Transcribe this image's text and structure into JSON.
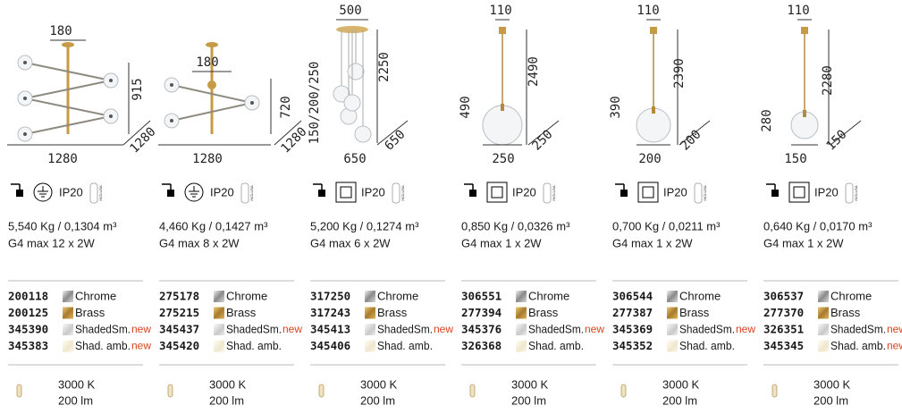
{
  "products": [
    {
      "dimensions": [
        "180",
        "915",
        "1280",
        "1280"
      ],
      "ip": "IP20",
      "included": "INCLUSA",
      "weight": "5,540 Kg / 0,1304 m³",
      "lamp": "G4 max 12 x 2W",
      "variants": [
        {
          "code": "200118",
          "finish": "Chrome"
        },
        {
          "code": "200125",
          "finish": "Brass"
        },
        {
          "code": "345390",
          "finish": "ShadedSm.",
          "tag": "new"
        },
        {
          "code": "345383",
          "finish": "Shad. amb.",
          "tag": "new"
        }
      ],
      "color_temperature": "3000 K",
      "flux": "200 lm"
    },
    {
      "dimensions": [
        "180",
        "720",
        "1280",
        "1280"
      ],
      "ip": "IP20",
      "included": "INCLUSA",
      "weight": "4,460 Kg / 0,1427 m³",
      "lamp": "G4 max 8 x 2W",
      "variants": [
        {
          "code": "275178",
          "finish": "Chrome"
        },
        {
          "code": "275215",
          "finish": "Brass"
        },
        {
          "code": "345437",
          "finish": "ShadedSm.",
          "tag": "new"
        },
        {
          "code": "345420",
          "finish": "Shad. amb."
        }
      ],
      "color_temperature": "3000 K",
      "flux": "200 lm"
    },
    {
      "dimensions": [
        "500",
        "150/200/250",
        "2250",
        "650",
        "650"
      ],
      "ip": "IP20",
      "included": "INCLUSA",
      "weight": "5,200 Kg / 0,1274 m³",
      "lamp": "G4 max 6 x 2W",
      "variants": [
        {
          "code": "317250",
          "finish": "Chrome"
        },
        {
          "code": "317243",
          "finish": "Brass"
        },
        {
          "code": "345413",
          "finish": "ShadedSm.",
          "tag": "new"
        },
        {
          "code": "345406",
          "finish": "Shad. amb."
        }
      ],
      "color_temperature": "3000 K",
      "flux": "200 lm"
    },
    {
      "dimensions": [
        "110",
        "490",
        "2490",
        "250",
        "250"
      ],
      "ip": "IP20",
      "included": "INCLUSA",
      "weight": "0,850 Kg / 0,0326 m³",
      "lamp": "G4 max 1 x 2W",
      "variants": [
        {
          "code": "306551",
          "finish": "Chrome"
        },
        {
          "code": "277394",
          "finish": "Brass"
        },
        {
          "code": "345376",
          "finish": "ShadedSm.",
          "tag": "new"
        },
        {
          "code": "326368",
          "finish": "Shad. amb."
        }
      ],
      "color_temperature": "3000 K",
      "flux": "200 lm"
    },
    {
      "dimensions": [
        "110",
        "390",
        "2390",
        "200",
        "200"
      ],
      "ip": "IP20",
      "included": "INCLUSA",
      "weight": "0,700 Kg / 0,0211 m³",
      "lamp": "G4 max 1 x 2W",
      "variants": [
        {
          "code": "306544",
          "finish": "Chrome"
        },
        {
          "code": "277387",
          "finish": "Brass"
        },
        {
          "code": "345369",
          "finish": "ShadedSm.",
          "tag": "new"
        },
        {
          "code": "345352",
          "finish": "Shad. amb."
        }
      ],
      "color_temperature": "3000 K",
      "flux": "200 lm"
    },
    {
      "dimensions": [
        "110",
        "280",
        "2280",
        "150",
        "150"
      ],
      "ip": "IP20",
      "included": "INCLUSA",
      "weight": "0,640 Kg / 0,0170 m³",
      "lamp": "G4 max 1 x 2W",
      "variants": [
        {
          "code": "306537",
          "finish": "Chrome"
        },
        {
          "code": "277370",
          "finish": "Brass"
        },
        {
          "code": "326351",
          "finish": "ShadedSm.",
          "tag": "new"
        },
        {
          "code": "345345",
          "finish": "Shad. amb.",
          "tag": "new"
        }
      ],
      "color_temperature": "3000 K",
      "flux": "200 lm"
    }
  ]
}
